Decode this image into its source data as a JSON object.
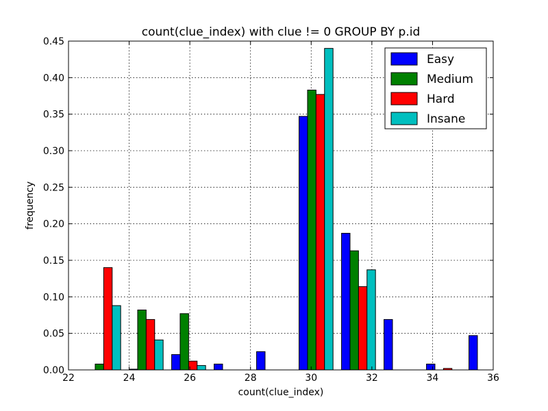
{
  "chart_data": {
    "type": "bar",
    "title": "count(clue_index) with clue != 0 GROUP BY p.id",
    "xlabel": "count(clue_index)",
    "ylabel": "frequency",
    "xlim": [
      22,
      36
    ],
    "ylim": [
      0,
      0.45
    ],
    "xticks": [
      "22",
      "24",
      "26",
      "28",
      "30",
      "32",
      "34",
      "36"
    ],
    "yticks": [
      "0.00",
      "0.05",
      "0.10",
      "0.15",
      "0.20",
      "0.25",
      "0.30",
      "0.35",
      "0.40",
      "0.45"
    ],
    "grid": true,
    "legend_position": "top-right",
    "bin_edges": [
      22.6,
      24.0,
      25.4,
      26.8,
      28.2,
      29.6,
      31.0,
      32.4,
      33.8,
      35.2
    ],
    "series": [
      {
        "name": "Easy",
        "color": "#0000ff",
        "values": [
          0.0,
          0.001,
          0.021,
          0.008,
          0.025,
          0.347,
          0.187,
          0.069,
          0.008,
          0.047
        ]
      },
      {
        "name": "Medium",
        "color": "#008000",
        "values": [
          0.008,
          0.082,
          0.077,
          0.0,
          0.0,
          0.383,
          0.163,
          0.0,
          0.0,
          0.0
        ]
      },
      {
        "name": "Hard",
        "color": "#ff0000",
        "values": [
          0.14,
          0.069,
          0.012,
          0.0,
          0.0,
          0.377,
          0.114,
          0.0,
          0.002,
          0.0
        ]
      },
      {
        "name": "Insane",
        "color": "#00bfbf",
        "values": [
          0.088,
          0.041,
          0.006,
          0.0,
          0.0,
          0.44,
          0.137,
          0.0,
          0.0,
          0.0
        ]
      }
    ]
  }
}
